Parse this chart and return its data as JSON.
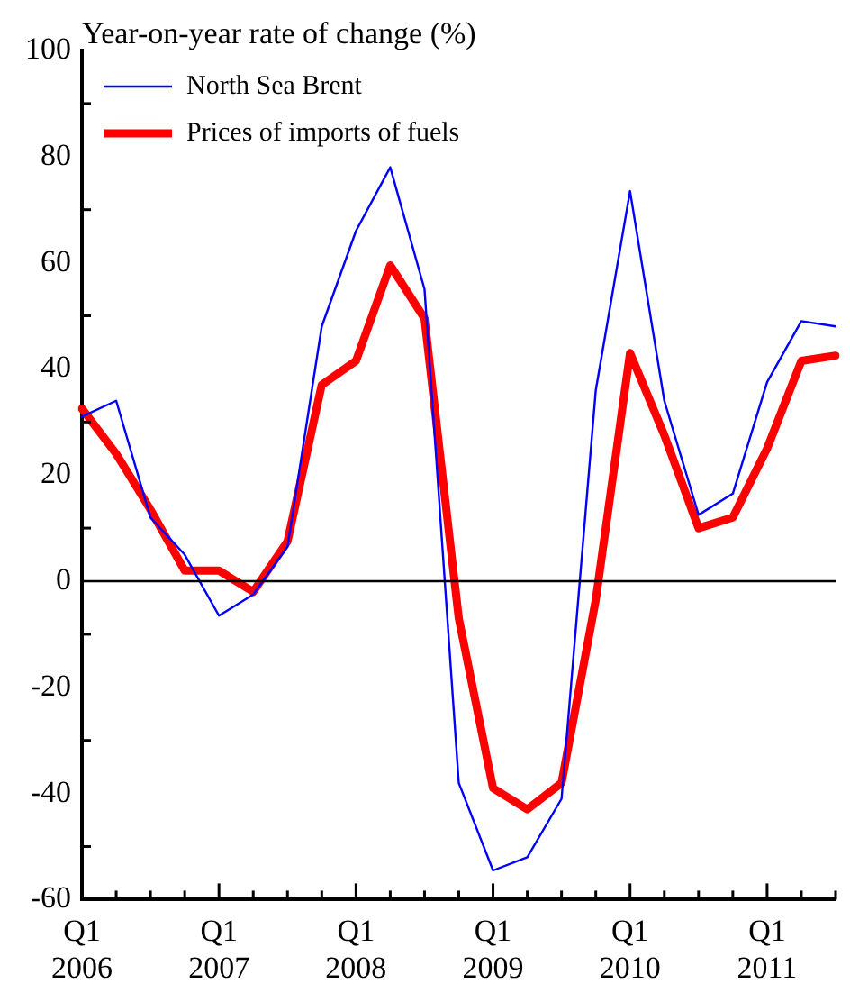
{
  "chart_data": {
    "type": "line",
    "ylabel": "Year-on-year rate of change (%)",
    "categories": [
      "Q1 2006",
      null,
      null,
      null,
      "Q1 2007",
      null,
      null,
      null,
      "Q1 2008",
      null,
      null,
      null,
      "Q1 2009",
      null,
      null,
      null,
      "Q1 2010",
      null,
      null,
      null,
      "Q1 2011",
      null,
      null
    ],
    "series": [
      {
        "name": "North Sea Brent",
        "color": "#0000ff",
        "values": [
          31,
          34,
          12,
          5,
          -6.5,
          -2.5,
          6.5,
          48,
          66,
          78,
          55,
          -38,
          -54.5,
          -52,
          -41,
          36,
          73.5,
          34,
          12.5,
          16.5,
          37.5,
          49,
          48
        ]
      },
      {
        "name": "Prices of imports of fuels",
        "color": "#ff0000",
        "values": [
          32.5,
          24,
          13.5,
          2,
          2,
          -2,
          7.5,
          37,
          41.5,
          59.5,
          49.5,
          -7,
          -39,
          -43,
          -38,
          -3.5,
          43,
          27.5,
          10,
          12,
          25,
          41.5,
          42.5
        ]
      }
    ],
    "ylim": [
      -60,
      100
    ],
    "yticks": [
      -60,
      -40,
      -20,
      0,
      20,
      40,
      60,
      80,
      100
    ],
    "ref_lines": [
      {
        "axis": "y",
        "value": 0,
        "color": "#000000"
      }
    ],
    "grid": false,
    "legend": "top left",
    "marker": "none",
    "line_style": "solid"
  }
}
